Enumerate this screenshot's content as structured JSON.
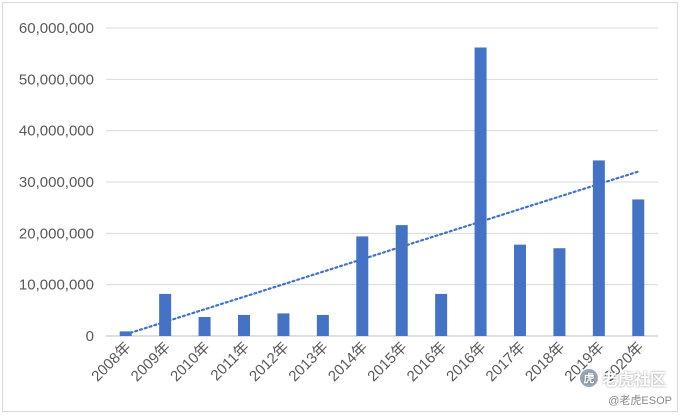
{
  "chart_data": {
    "type": "bar",
    "categories": [
      "2008年",
      "2009年",
      "2010年",
      "2011年",
      "2012年",
      "2013年",
      "2014年",
      "2015年",
      "2016年",
      "2016年",
      "2017年",
      "2018年",
      "2019年",
      "2020年"
    ],
    "values": [
      900000,
      8200000,
      3700000,
      4100000,
      4400000,
      4100000,
      19400000,
      21600000,
      8200000,
      56200000,
      17800000,
      17100000,
      34200000,
      26600000
    ],
    "ylim": [
      0,
      60000000
    ],
    "yticks": [
      "0",
      "10,000,000",
      "20,000,000",
      "30,000,000",
      "40,000,000",
      "50,000,000",
      "60,000,000"
    ],
    "grid": true,
    "bar_color": "#4472C4",
    "trendline": {
      "type": "linear",
      "style": "dotted",
      "color": "#4472C4"
    },
    "title": "",
    "xlabel": "",
    "ylabel": ""
  },
  "watermark": {
    "brand": "老虎社区",
    "handle": "@老虎ESOP",
    "icon": "tiger-logo-icon"
  }
}
